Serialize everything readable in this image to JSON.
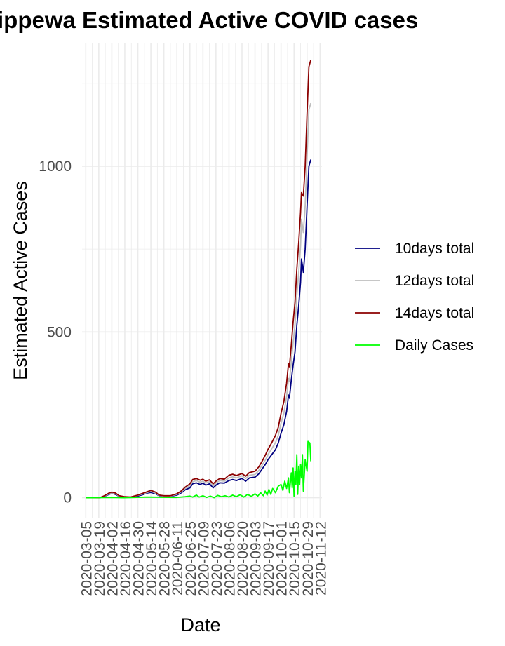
{
  "chart_data": {
    "type": "line",
    "title": "ippewa Estimated Active COVID cases",
    "xlabel": "Date",
    "ylabel": "Estimated Active Cases",
    "x_ticks": [
      "2020-03-05",
      "2020-03-19",
      "2020-04-02",
      "2020-04-16",
      "2020-04-30",
      "2020-05-14",
      "2020-05-28",
      "2020-06-11",
      "2020-06-25",
      "2020-07-09",
      "2020-07-23",
      "2020-08-06",
      "2020-08-20",
      "2020-09-03",
      "2020-09-17",
      "2020-10-01",
      "2020-10-15",
      "2020-10-29",
      "2020-11-12"
    ],
    "y_ticks": [
      0,
      500,
      1000
    ],
    "ylim": [
      -60,
      1370
    ],
    "xlim": [
      "2020-03-01",
      "2020-11-14"
    ],
    "grid": true,
    "legend_position": "right",
    "series": [
      {
        "name": "10days total",
        "color": "#000080",
        "points": [
          [
            "2020-03-05",
            0
          ],
          [
            "2020-03-20",
            0
          ],
          [
            "2020-03-25",
            4
          ],
          [
            "2020-03-30",
            10
          ],
          [
            "2020-04-02",
            13
          ],
          [
            "2020-04-06",
            10
          ],
          [
            "2020-04-10",
            4
          ],
          [
            "2020-04-16",
            2
          ],
          [
            "2020-04-22",
            1
          ],
          [
            "2020-04-30",
            5
          ],
          [
            "2020-05-05",
            9
          ],
          [
            "2020-05-10",
            14
          ],
          [
            "2020-05-14",
            16
          ],
          [
            "2020-05-19",
            12
          ],
          [
            "2020-05-23",
            6
          ],
          [
            "2020-05-28",
            4
          ],
          [
            "2020-06-04",
            4
          ],
          [
            "2020-06-11",
            8
          ],
          [
            "2020-06-16",
            15
          ],
          [
            "2020-06-20",
            24
          ],
          [
            "2020-06-25",
            30
          ],
          [
            "2020-06-28",
            42
          ],
          [
            "2020-07-02",
            45
          ],
          [
            "2020-07-06",
            40
          ],
          [
            "2020-07-09",
            44
          ],
          [
            "2020-07-12",
            38
          ],
          [
            "2020-07-16",
            42
          ],
          [
            "2020-07-20",
            30
          ],
          [
            "2020-07-23",
            38
          ],
          [
            "2020-07-27",
            45
          ],
          [
            "2020-08-01",
            44
          ],
          [
            "2020-08-06",
            52
          ],
          [
            "2020-08-10",
            55
          ],
          [
            "2020-08-14",
            52
          ],
          [
            "2020-08-20",
            58
          ],
          [
            "2020-08-24",
            50
          ],
          [
            "2020-08-28",
            60
          ],
          [
            "2020-09-03",
            62
          ],
          [
            "2020-09-07",
            72
          ],
          [
            "2020-09-11",
            88
          ],
          [
            "2020-09-14",
            100
          ],
          [
            "2020-09-17",
            115
          ],
          [
            "2020-09-21",
            130
          ],
          [
            "2020-09-25",
            145
          ],
          [
            "2020-09-28",
            165
          ],
          [
            "2020-10-01",
            195
          ],
          [
            "2020-10-04",
            220
          ],
          [
            "2020-10-07",
            260
          ],
          [
            "2020-10-09",
            310
          ],
          [
            "2020-10-10",
            300
          ],
          [
            "2020-10-12",
            355
          ],
          [
            "2020-10-14",
            400
          ],
          [
            "2020-10-16",
            440
          ],
          [
            "2020-10-18",
            520
          ],
          [
            "2020-10-20",
            580
          ],
          [
            "2020-10-22",
            650
          ],
          [
            "2020-10-23",
            720
          ],
          [
            "2020-10-24",
            700
          ],
          [
            "2020-10-25",
            680
          ],
          [
            "2020-10-27",
            750
          ],
          [
            "2020-10-29",
            880
          ],
          [
            "2020-10-31",
            1000
          ],
          [
            "2020-11-02",
            1020
          ]
        ]
      },
      {
        "name": "12days total",
        "color": "#bebebe",
        "points": [
          [
            "2020-03-05",
            0
          ],
          [
            "2020-03-20",
            0
          ],
          [
            "2020-03-25",
            5
          ],
          [
            "2020-03-30",
            12
          ],
          [
            "2020-04-02",
            15
          ],
          [
            "2020-04-06",
            12
          ],
          [
            "2020-04-10",
            5
          ],
          [
            "2020-04-16",
            2
          ],
          [
            "2020-04-22",
            2
          ],
          [
            "2020-04-30",
            7
          ],
          [
            "2020-05-05",
            11
          ],
          [
            "2020-05-10",
            16
          ],
          [
            "2020-05-14",
            19
          ],
          [
            "2020-05-19",
            14
          ],
          [
            "2020-05-23",
            7
          ],
          [
            "2020-05-28",
            5
          ],
          [
            "2020-06-04",
            5
          ],
          [
            "2020-06-11",
            10
          ],
          [
            "2020-06-16",
            18
          ],
          [
            "2020-06-20",
            28
          ],
          [
            "2020-06-25",
            36
          ],
          [
            "2020-06-28",
            48
          ],
          [
            "2020-07-02",
            52
          ],
          [
            "2020-07-06",
            47
          ],
          [
            "2020-07-09",
            50
          ],
          [
            "2020-07-12",
            44
          ],
          [
            "2020-07-16",
            48
          ],
          [
            "2020-07-20",
            36
          ],
          [
            "2020-07-23",
            44
          ],
          [
            "2020-07-27",
            52
          ],
          [
            "2020-08-01",
            50
          ],
          [
            "2020-08-06",
            60
          ],
          [
            "2020-08-10",
            63
          ],
          [
            "2020-08-14",
            60
          ],
          [
            "2020-08-20",
            66
          ],
          [
            "2020-08-24",
            58
          ],
          [
            "2020-08-28",
            68
          ],
          [
            "2020-09-03",
            70
          ],
          [
            "2020-09-07",
            82
          ],
          [
            "2020-09-11",
            100
          ],
          [
            "2020-09-14",
            113
          ],
          [
            "2020-09-17",
            130
          ],
          [
            "2020-09-21",
            148
          ],
          [
            "2020-09-25",
            166
          ],
          [
            "2020-09-28",
            188
          ],
          [
            "2020-10-01",
            225
          ],
          [
            "2020-10-04",
            255
          ],
          [
            "2020-10-07",
            305
          ],
          [
            "2020-10-09",
            360
          ],
          [
            "2020-10-10",
            350
          ],
          [
            "2020-10-12",
            410
          ],
          [
            "2020-10-14",
            470
          ],
          [
            "2020-10-16",
            520
          ],
          [
            "2020-10-18",
            610
          ],
          [
            "2020-10-20",
            680
          ],
          [
            "2020-10-22",
            760
          ],
          [
            "2020-10-23",
            840
          ],
          [
            "2020-10-24",
            820
          ],
          [
            "2020-10-25",
            800
          ],
          [
            "2020-10-27",
            880
          ],
          [
            "2020-10-29",
            1030
          ],
          [
            "2020-10-31",
            1170
          ],
          [
            "2020-11-02",
            1190
          ]
        ]
      },
      {
        "name": "14days total",
        "color": "#8b0000",
        "points": [
          [
            "2020-03-05",
            0
          ],
          [
            "2020-03-20",
            0
          ],
          [
            "2020-03-25",
            6
          ],
          [
            "2020-03-30",
            14
          ],
          [
            "2020-04-02",
            17
          ],
          [
            "2020-04-06",
            14
          ],
          [
            "2020-04-10",
            6
          ],
          [
            "2020-04-16",
            3
          ],
          [
            "2020-04-22",
            2
          ],
          [
            "2020-04-30",
            8
          ],
          [
            "2020-05-05",
            13
          ],
          [
            "2020-05-10",
            18
          ],
          [
            "2020-05-14",
            22
          ],
          [
            "2020-05-19",
            17
          ],
          [
            "2020-05-23",
            8
          ],
          [
            "2020-05-28",
            6
          ],
          [
            "2020-06-04",
            6
          ],
          [
            "2020-06-11",
            12
          ],
          [
            "2020-06-16",
            21
          ],
          [
            "2020-06-20",
            32
          ],
          [
            "2020-06-25",
            42
          ],
          [
            "2020-06-28",
            55
          ],
          [
            "2020-07-02",
            58
          ],
          [
            "2020-07-06",
            53
          ],
          [
            "2020-07-09",
            56
          ],
          [
            "2020-07-12",
            50
          ],
          [
            "2020-07-16",
            54
          ],
          [
            "2020-07-20",
            42
          ],
          [
            "2020-07-23",
            50
          ],
          [
            "2020-07-27",
            58
          ],
          [
            "2020-08-01",
            56
          ],
          [
            "2020-08-06",
            68
          ],
          [
            "2020-08-10",
            71
          ],
          [
            "2020-08-14",
            67
          ],
          [
            "2020-08-20",
            73
          ],
          [
            "2020-08-24",
            65
          ],
          [
            "2020-08-28",
            76
          ],
          [
            "2020-09-03",
            80
          ],
          [
            "2020-09-07",
            93
          ],
          [
            "2020-09-11",
            112
          ],
          [
            "2020-09-14",
            128
          ],
          [
            "2020-09-17",
            146
          ],
          [
            "2020-09-21",
            166
          ],
          [
            "2020-09-25",
            188
          ],
          [
            "2020-09-28",
            212
          ],
          [
            "2020-10-01",
            255
          ],
          [
            "2020-10-04",
            290
          ],
          [
            "2020-10-07",
            345
          ],
          [
            "2020-10-09",
            405
          ],
          [
            "2020-10-10",
            395
          ],
          [
            "2020-10-12",
            460
          ],
          [
            "2020-10-14",
            530
          ],
          [
            "2020-10-16",
            590
          ],
          [
            "2020-10-18",
            690
          ],
          [
            "2020-10-20",
            770
          ],
          [
            "2020-10-22",
            860
          ],
          [
            "2020-10-23",
            920
          ],
          [
            "2020-10-24",
            915
          ],
          [
            "2020-10-25",
            910
          ],
          [
            "2020-10-27",
            1000
          ],
          [
            "2020-10-29",
            1160
          ],
          [
            "2020-10-31",
            1300
          ],
          [
            "2020-11-02",
            1320
          ]
        ]
      },
      {
        "name": "Daily Cases",
        "color": "#00ff00",
        "points": [
          [
            "2020-03-05",
            0
          ],
          [
            "2020-04-01",
            1
          ],
          [
            "2020-04-15",
            0
          ],
          [
            "2020-05-10",
            2
          ],
          [
            "2020-06-10",
            1
          ],
          [
            "2020-06-20",
            3
          ],
          [
            "2020-06-25",
            5
          ],
          [
            "2020-06-28",
            2
          ],
          [
            "2020-07-02",
            8
          ],
          [
            "2020-07-05",
            2
          ],
          [
            "2020-07-09",
            6
          ],
          [
            "2020-07-13",
            1
          ],
          [
            "2020-07-17",
            5
          ],
          [
            "2020-07-21",
            0
          ],
          [
            "2020-07-25",
            7
          ],
          [
            "2020-07-29",
            3
          ],
          [
            "2020-08-02",
            6
          ],
          [
            "2020-08-06",
            2
          ],
          [
            "2020-08-10",
            8
          ],
          [
            "2020-08-14",
            3
          ],
          [
            "2020-08-18",
            9
          ],
          [
            "2020-08-22",
            2
          ],
          [
            "2020-08-26",
            10
          ],
          [
            "2020-08-30",
            4
          ],
          [
            "2020-09-03",
            12
          ],
          [
            "2020-09-06",
            5
          ],
          [
            "2020-09-09",
            15
          ],
          [
            "2020-09-12",
            6
          ],
          [
            "2020-09-14",
            20
          ],
          [
            "2020-09-16",
            8
          ],
          [
            "2020-09-18",
            25
          ],
          [
            "2020-09-20",
            10
          ],
          [
            "2020-09-22",
            28
          ],
          [
            "2020-09-25",
            15
          ],
          [
            "2020-09-28",
            35
          ],
          [
            "2020-10-01",
            40
          ],
          [
            "2020-10-03",
            22
          ],
          [
            "2020-10-05",
            50
          ],
          [
            "2020-10-07",
            28
          ],
          [
            "2020-10-09",
            60
          ],
          [
            "2020-10-10",
            15
          ],
          [
            "2020-10-12",
            75
          ],
          [
            "2020-10-13",
            30
          ],
          [
            "2020-10-14",
            90
          ],
          [
            "2020-10-15",
            5
          ],
          [
            "2020-10-16",
            80
          ],
          [
            "2020-10-17",
            40
          ],
          [
            "2020-10-18",
            130
          ],
          [
            "2020-10-19",
            10
          ],
          [
            "2020-10-20",
            95
          ],
          [
            "2020-10-21",
            40
          ],
          [
            "2020-10-22",
            100
          ],
          [
            "2020-10-23",
            60
          ],
          [
            "2020-10-24",
            130
          ],
          [
            "2020-10-25",
            20
          ],
          [
            "2020-10-27",
            115
          ],
          [
            "2020-10-29",
            80
          ],
          [
            "2020-10-30",
            170
          ],
          [
            "2020-11-01",
            165
          ],
          [
            "2020-11-02",
            110
          ]
        ]
      }
    ]
  }
}
